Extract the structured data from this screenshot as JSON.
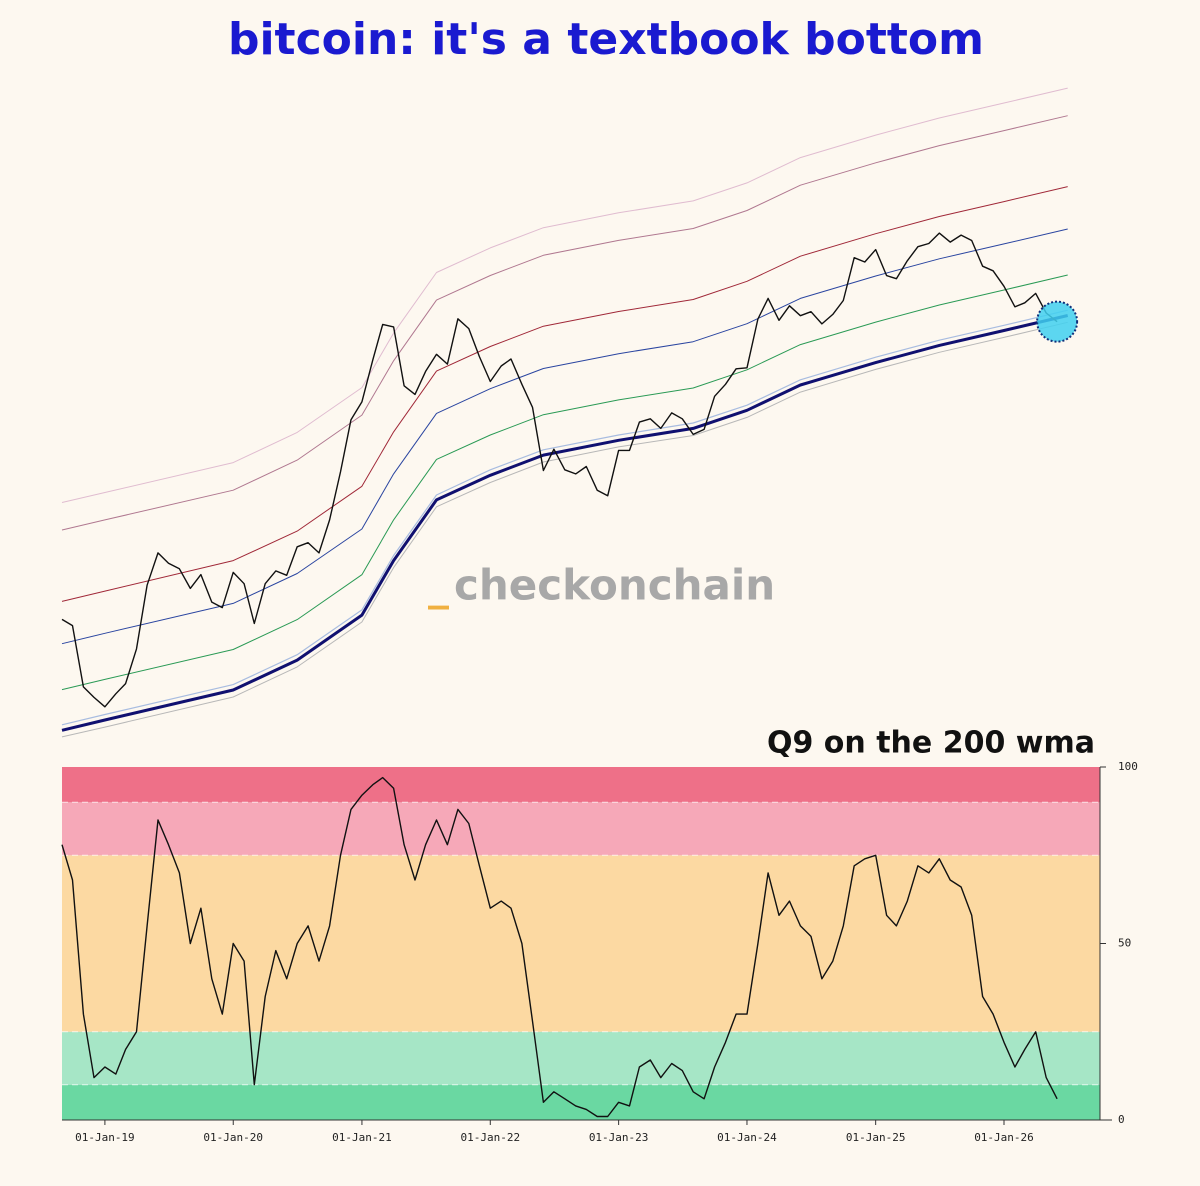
{
  "title": "bitcoin: it's a textbook bottom",
  "watermark": [
    "_",
    "checkonchain"
  ],
  "chart_data": [
    {
      "type": "line",
      "log_scale": true,
      "xlim": [
        "2018-09-01",
        "2026-10-01"
      ],
      "ylim": [
        2800,
        360000
      ],
      "x": [
        "2018-09-01",
        "2018-10-01",
        "2018-11-01",
        "2018-12-01",
        "2019-01-01",
        "2019-02-01",
        "2019-03-01",
        "2019-04-01",
        "2019-05-01",
        "2019-06-01",
        "2019-07-01",
        "2019-08-01",
        "2019-09-01",
        "2019-10-01",
        "2019-11-01",
        "2019-12-01",
        "2020-01-01",
        "2020-02-01",
        "2020-03-01",
        "2020-04-01",
        "2020-05-01",
        "2020-06-01",
        "2020-07-01",
        "2020-08-01",
        "2020-09-01",
        "2020-10-01",
        "2020-11-01",
        "2020-12-01",
        "2021-01-01",
        "2021-02-01",
        "2021-03-01",
        "2021-04-01",
        "2021-05-01",
        "2021-06-01",
        "2021-07-01",
        "2021-08-01",
        "2021-09-01",
        "2021-10-01",
        "2021-11-01",
        "2021-12-01",
        "2022-01-01",
        "2022-02-01",
        "2022-03-01",
        "2022-04-01",
        "2022-05-01",
        "2022-06-01",
        "2022-07-01",
        "2022-08-01",
        "2022-09-01",
        "2022-10-01",
        "2022-11-01",
        "2022-12-01",
        "2023-01-01",
        "2023-02-01",
        "2023-03-01",
        "2023-04-01",
        "2023-05-01",
        "2023-06-01",
        "2023-07-01",
        "2023-08-01",
        "2023-09-01",
        "2023-10-01",
        "2023-11-01",
        "2023-12-01",
        "2024-01-01",
        "2024-02-01",
        "2024-03-01",
        "2024-04-01",
        "2024-05-01",
        "2024-06-01",
        "2024-07-01",
        "2024-08-01",
        "2024-09-01",
        "2024-10-01",
        "2024-11-01",
        "2024-12-01",
        "2025-01-01",
        "2025-02-01",
        "2025-03-01",
        "2025-04-01",
        "2025-05-01",
        "2025-06-01",
        "2025-07-01",
        "2025-08-01",
        "2025-09-01",
        "2025-10-01",
        "2025-11-01",
        "2025-12-01",
        "2026-01-01",
        "2026-02-01",
        "2026-03-01",
        "2026-04-01",
        "2026-05-01",
        "2026-06-01"
      ],
      "series": [
        {
          "color": "#111111",
          "values": [
            6600,
            6300,
            4000,
            3700,
            3450,
            3800,
            4100,
            5300,
            8500,
            10800,
            10000,
            9600,
            8300,
            9200,
            7500,
            7200,
            9350,
            8600,
            6400,
            8600,
            9450,
            9150,
            11300,
            11650,
            10800,
            13800,
            19700,
            29000,
            33100,
            45200,
            58800,
            57700,
            37300,
            35000,
            41500,
            47100,
            43800,
            61300,
            57000,
            46300,
            38500,
            43200,
            45500,
            37700,
            31800,
            19900,
            23300,
            20000,
            19400,
            20500,
            17200,
            16500,
            23100,
            23100,
            28500,
            29200,
            27200,
            30500,
            29200,
            26000,
            27000,
            34500,
            37700,
            42300,
            42600,
            61200,
            71300,
            60600,
            67500,
            62700,
            64600,
            59000,
            63300,
            70200,
            96400,
            93400,
            102400,
            84400,
            82500,
            94200,
            104600,
            107100,
            115700,
            108200,
            114000,
            109500,
            90500,
            87500,
            78000,
            67000,
            69000,
            74000,
            64000,
            60000
          ]
        }
      ],
      "bands": {
        "x": [
          "2018-09-01",
          "2019-01-01",
          "2020-01-01",
          "2020-07-01",
          "2021-01-01",
          "2021-04-01",
          "2021-08-01",
          "2022-01-01",
          "2022-06-01",
          "2023-01-01",
          "2023-08-01",
          "2024-01-01",
          "2024-06-01",
          "2025-01-01",
          "2025-07-01",
          "2026-01-01",
          "2026-07-01"
        ],
        "series": [
          {
            "color": "#b8b8b8",
            "width": 1,
            "values": [
              2760,
              2970,
              3710,
              4640,
              6470,
              9690,
              15200,
              18200,
              21200,
              23700,
              25800,
              29500,
              35600,
              42100,
              47800,
              53400,
              59700
            ]
          },
          {
            "color": "#a8bce0",
            "width": 1.2,
            "values": [
              3020,
              3260,
              4070,
              5080,
              7080,
              10600,
              16600,
              20000,
              23200,
              25900,
              28300,
              32300,
              39000,
              46100,
              52300,
              58400,
              65300
            ]
          },
          {
            "color": "#2a9a55",
            "width": 1,
            "values": [
              3920,
              4230,
              5280,
              6590,
              9190,
              13800,
              21600,
              25900,
              30100,
              33600,
              36700,
              42000,
              50600,
              59800,
              67900,
              75900,
              84800
            ]
          },
          {
            "color": "#2a45a0",
            "width": 1,
            "values": [
              5510,
              5950,
              7430,
              9270,
              12900,
              19400,
              30400,
              36500,
              42400,
              47300,
              51700,
              59100,
              71300,
              84200,
              95600,
              106800,
              119300
            ]
          },
          {
            "color": "#a02838",
            "width": 1,
            "values": [
              7540,
              8140,
              10200,
              12700,
              17700,
              26500,
              41600,
              49900,
              58000,
              64700,
              70700,
              80900,
              97500,
              115200,
              130800,
              146100,
              163300
            ]
          },
          {
            "color": "#b07890",
            "width": 1,
            "values": [
              12800,
              13800,
              17200,
              21500,
              30000,
              44900,
              70400,
              84500,
              98100,
              109600,
              119700,
              136800,
              165000,
              194900,
              221300,
              247300,
              276300
            ]
          },
          {
            "color": "#e0bcd0",
            "width": 1,
            "values": [
              15700,
              16900,
              21100,
              26400,
              36800,
              55100,
              86400,
              103700,
              120400,
              134500,
              146900,
              167900,
              202500,
              239200,
              271600,
              303500,
              339100
            ]
          },
          {
            "color": "#101070",
            "width": 3,
            "values": [
              2900,
              3130,
              3910,
              4880,
              6810,
              10200,
              16000,
              19200,
              22300,
              24900,
              27200,
              31100,
              37500,
              44300,
              50300,
              56200,
              62800
            ]
          }
        ]
      }
    },
    {
      "type": "line",
      "subtitle": "Q9 on the 200 wma",
      "xlim": [
        "2018-09-01",
        "2026-10-01"
      ],
      "ylim": [
        0,
        100
      ],
      "yticks": [
        0,
        50,
        100
      ],
      "xticks": [
        {
          "value": "2019-01-01",
          "label": "01-Jan-19"
        },
        {
          "value": "2020-01-01",
          "label": "01-Jan-20"
        },
        {
          "value": "2021-01-01",
          "label": "01-Jan-21"
        },
        {
          "value": "2022-01-01",
          "label": "01-Jan-22"
        },
        {
          "value": "2023-01-01",
          "label": "01-Jan-23"
        },
        {
          "value": "2024-01-01",
          "label": "01-Jan-24"
        },
        {
          "value": "2025-01-01",
          "label": "01-Jan-25"
        },
        {
          "value": "2026-01-01",
          "label": "01-Jan-26"
        }
      ],
      "zones": [
        {
          "from": 0,
          "to": 10,
          "color": "#6ad8a2"
        },
        {
          "from": 10,
          "to": 25,
          "color": "#a6e6c6"
        },
        {
          "from": 25,
          "to": 75,
          "color": "#fcd9a2"
        },
        {
          "from": 75,
          "to": 90,
          "color": "#f6a8b8"
        },
        {
          "from": 90,
          "to": 100,
          "color": "#ee7088"
        }
      ],
      "x": [
        "2018-09-01",
        "2018-10-01",
        "2018-11-01",
        "2018-12-01",
        "2019-01-01",
        "2019-02-01",
        "2019-03-01",
        "2019-04-01",
        "2019-05-01",
        "2019-06-01",
        "2019-07-01",
        "2019-08-01",
        "2019-09-01",
        "2019-10-01",
        "2019-11-01",
        "2019-12-01",
        "2020-01-01",
        "2020-02-01",
        "2020-03-01",
        "2020-04-01",
        "2020-05-01",
        "2020-06-01",
        "2020-07-01",
        "2020-08-01",
        "2020-09-01",
        "2020-10-01",
        "2020-11-01",
        "2020-12-01",
        "2021-01-01",
        "2021-02-01",
        "2021-03-01",
        "2021-04-01",
        "2021-05-01",
        "2021-06-01",
        "2021-07-01",
        "2021-08-01",
        "2021-09-01",
        "2021-10-01",
        "2021-11-01",
        "2021-12-01",
        "2022-01-01",
        "2022-02-01",
        "2022-03-01",
        "2022-04-01",
        "2022-05-01",
        "2022-06-01",
        "2022-07-01",
        "2022-08-01",
        "2022-09-01",
        "2022-10-01",
        "2022-11-01",
        "2022-12-01",
        "2023-01-01",
        "2023-02-01",
        "2023-03-01",
        "2023-04-01",
        "2023-05-01",
        "2023-06-01",
        "2023-07-01",
        "2023-08-01",
        "2023-09-01",
        "2023-10-01",
        "2023-11-01",
        "2023-12-01",
        "2024-01-01",
        "2024-02-01",
        "2024-03-01",
        "2024-04-01",
        "2024-05-01",
        "2024-06-01",
        "2024-07-01",
        "2024-08-01",
        "2024-09-01",
        "2024-10-01",
        "2024-11-01",
        "2024-12-01",
        "2025-01-01",
        "2025-02-01",
        "2025-03-01",
        "2025-04-01",
        "2025-05-01",
        "2025-06-01",
        "2025-07-01",
        "2025-08-01",
        "2025-09-01",
        "2025-10-01",
        "2025-11-01",
        "2025-12-01",
        "2026-01-01",
        "2026-02-01",
        "2026-03-01",
        "2026-04-01",
        "2026-05-01",
        "2026-06-01"
      ],
      "series": [
        {
          "color": "#111111",
          "values": [
            78,
            68,
            30,
            12,
            15,
            13,
            20,
            25,
            55,
            85,
            78,
            70,
            50,
            60,
            40,
            30,
            50,
            45,
            10,
            35,
            48,
            40,
            50,
            55,
            45,
            55,
            75,
            88,
            92,
            95,
            97,
            94,
            78,
            68,
            78,
            85,
            78,
            88,
            84,
            72,
            60,
            62,
            60,
            50,
            28,
            5,
            8,
            6,
            4,
            3,
            1,
            1,
            5,
            4,
            15,
            17,
            12,
            16,
            14,
            8,
            6,
            15,
            22,
            30,
            30,
            50,
            70,
            58,
            62,
            55,
            52,
            40,
            45,
            55,
            72,
            74,
            75,
            58,
            55,
            62,
            72,
            70,
            74,
            68,
            66,
            58,
            35,
            30,
            22,
            15,
            20,
            25,
            12,
            6
          ]
        }
      ]
    }
  ]
}
